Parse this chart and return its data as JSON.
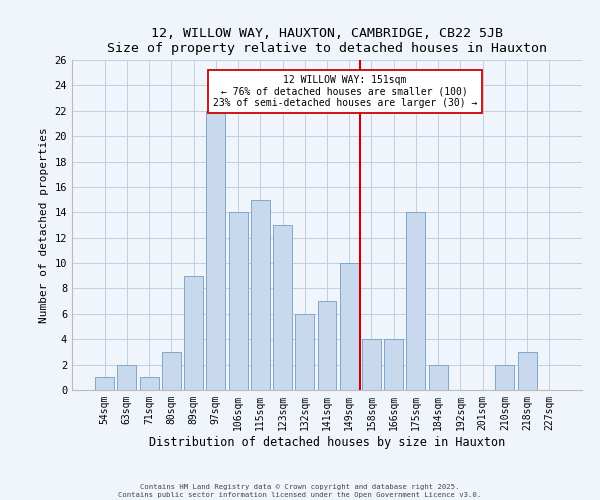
{
  "title": "12, WILLOW WAY, HAUXTON, CAMBRIDGE, CB22 5JB",
  "subtitle": "Size of property relative to detached houses in Hauxton",
  "xlabel": "Distribution of detached houses by size in Hauxton",
  "ylabel": "Number of detached properties",
  "bar_labels": [
    "54sqm",
    "63sqm",
    "71sqm",
    "80sqm",
    "89sqm",
    "97sqm",
    "106sqm",
    "115sqm",
    "123sqm",
    "132sqm",
    "141sqm",
    "149sqm",
    "158sqm",
    "166sqm",
    "175sqm",
    "184sqm",
    "192sqm",
    "201sqm",
    "210sqm",
    "218sqm",
    "227sqm"
  ],
  "bar_heights": [
    1,
    2,
    1,
    3,
    9,
    22,
    14,
    15,
    13,
    6,
    7,
    10,
    4,
    4,
    14,
    2,
    0,
    0,
    2,
    3,
    0
  ],
  "bar_color": "#c8d9ee",
  "bar_edge_color": "#7fa8cc",
  "vline_color": "#cc0000",
  "annotation_title": "12 WILLOW WAY: 151sqm",
  "annotation_line1": "← 76% of detached houses are smaller (100)",
  "annotation_line2": "23% of semi-detached houses are larger (30) →",
  "ylim": [
    0,
    26
  ],
  "yticks": [
    0,
    2,
    4,
    6,
    8,
    10,
    12,
    14,
    16,
    18,
    20,
    22,
    24,
    26
  ],
  "footer1": "Contains HM Land Registry data © Crown copyright and database right 2025.",
  "footer2": "Contains public sector information licensed under the Open Government Licence v3.0.",
  "bg_color": "#f0f4fb",
  "grid_color": "#c0cfe0"
}
